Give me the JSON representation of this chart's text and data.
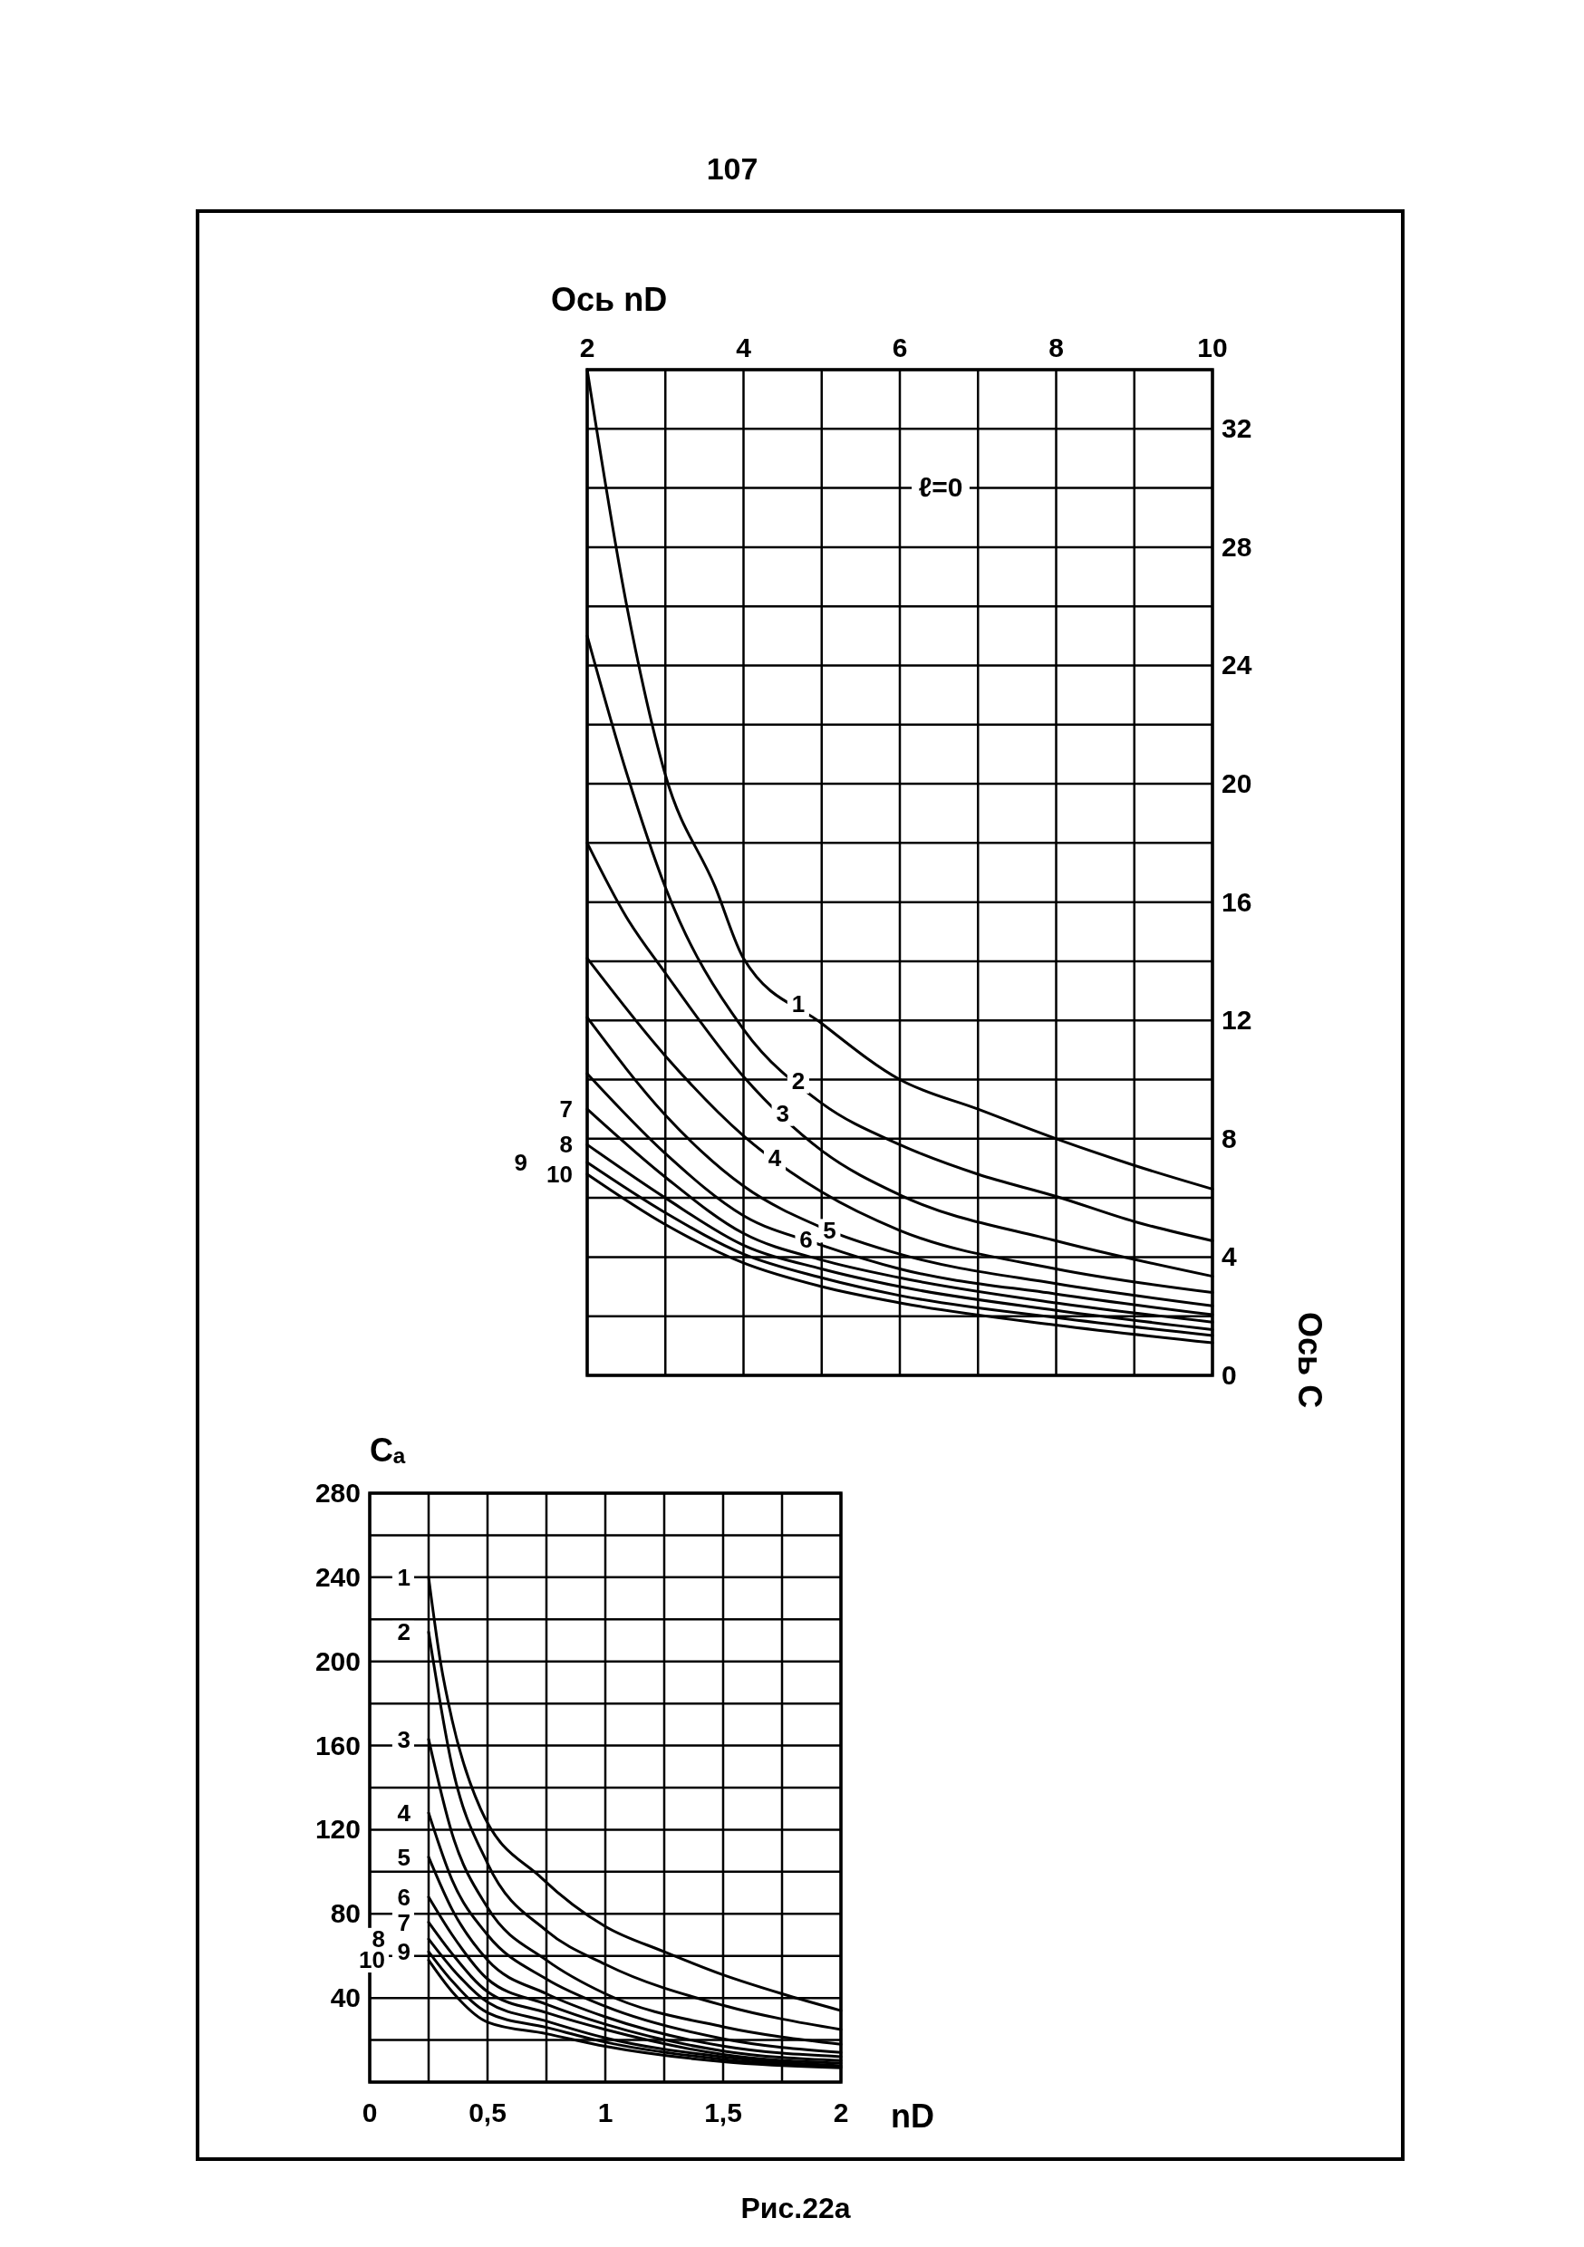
{
  "chart_data": [
    {
      "type": "line",
      "xlabel": "Ось nD",
      "ylabel": "Ось С",
      "xlim": [
        2,
        10
      ],
      "ylim": [
        0,
        34
      ],
      "xticks": [
        2,
        {
          "value": 3,
          "label": null
        },
        4,
        {
          "value": 5,
          "label": null
        },
        6,
        {
          "value": 7,
          "label": null
        },
        8,
        {
          "value": 9,
          "label": null
        },
        10
      ],
      "yticks": [
        0,
        {
          "value": 2,
          "label": null
        },
        4,
        {
          "value": 6,
          "label": null
        },
        8,
        {
          "value": 10,
          "label": null
        },
        12,
        {
          "value": 14,
          "label": null
        },
        16,
        {
          "value": 18,
          "label": null
        },
        20,
        {
          "value": 22,
          "label": null
        },
        24,
        {
          "value": 26,
          "label": null
        },
        28,
        {
          "value": 30,
          "label": null
        },
        32,
        {
          "value": 34,
          "label": null
        }
      ],
      "grid": true,
      "annotations": [
        "107",
        "ℓ=0",
        "Рис.22а"
      ],
      "series": [
        {
          "name": "1",
          "color": "#000000",
          "x": [
            2,
            2.5,
            3,
            3.64,
            4,
            5,
            6,
            7,
            8,
            9,
            10
          ],
          "values": [
            34,
            26.1,
            20.3,
            16.5,
            14.1,
            11.9,
            10,
            9,
            8,
            7.1,
            6.3
          ]
        },
        {
          "name": "2",
          "color": "#000000",
          "x": [
            2,
            2.5,
            3,
            4,
            5,
            6,
            7,
            8,
            9,
            10
          ],
          "values": [
            25,
            20.4,
            16.5,
            11.7,
            9.2,
            7.8,
            6.8,
            6.05,
            5.2,
            4.55
          ]
        },
        {
          "name": "3",
          "color": "#000000",
          "x": [
            2,
            2.5,
            3,
            4,
            5,
            6,
            8,
            10
          ],
          "values": [
            18,
            15.5,
            13.6,
            10.1,
            7.6,
            6.1,
            4.55,
            3.35
          ]
        },
        {
          "name": "4",
          "color": "#000000",
          "x": [
            2,
            3,
            4,
            5,
            6,
            8,
            10
          ],
          "values": [
            14.1,
            10.8,
            8.1,
            6.2,
            4.9,
            3.6,
            2.8
          ]
        },
        {
          "name": "5",
          "color": "#000000",
          "x": [
            2,
            3,
            4,
            5,
            6,
            8,
            10
          ],
          "values": [
            12.1,
            8.8,
            6.4,
            5,
            4.1,
            3.1,
            2.35
          ]
        },
        {
          "name": "6",
          "color": "#000000",
          "x": [
            2,
            3,
            4,
            5,
            6,
            8,
            10
          ],
          "values": [
            10.2,
            7.5,
            5.4,
            4.4,
            3.6,
            2.75,
            2.05
          ]
        },
        {
          "name": "7",
          "color": "#000000",
          "x": [
            2,
            3,
            4,
            5,
            6,
            8,
            10
          ],
          "values": [
            9,
            6.7,
            4.8,
            3.9,
            3.3,
            2.45,
            1.8
          ]
        },
        {
          "name": "8",
          "color": "#000000",
          "x": [
            2,
            3,
            4,
            5,
            6,
            8,
            10
          ],
          "values": [
            7.8,
            6,
            4.4,
            3.6,
            3,
            2.2,
            1.55
          ]
        },
        {
          "name": "9",
          "color": "#000000",
          "x": [
            2,
            3,
            4,
            5,
            6,
            8,
            10
          ],
          "values": [
            7.2,
            5.5,
            4.1,
            3.3,
            2.7,
            1.95,
            1.35
          ]
        },
        {
          "name": "10",
          "color": "#000000",
          "x": [
            2,
            3,
            4,
            5,
            6,
            8,
            10
          ],
          "values": [
            6.8,
            5.1,
            3.8,
            3,
            2.45,
            1.7,
            1.1
          ]
        }
      ]
    },
    {
      "type": "line",
      "xlabel": "nD",
      "ylabel": "Cₐ",
      "xlim": [
        0,
        2
      ],
      "ylim": [
        0,
        280
      ],
      "xticks": [
        0,
        {
          "value": 0.25,
          "label": null
        },
        {
          "value": 0.5,
          "label": "0,5"
        },
        {
          "value": 0.75,
          "label": null
        },
        1,
        {
          "value": 1.25,
          "label": null
        },
        {
          "value": 1.5,
          "label": "1,5"
        },
        {
          "value": 1.75,
          "label": null
        },
        2
      ],
      "yticks": [
        {
          "value": 0,
          "label": null
        },
        {
          "value": 20,
          "label": null
        },
        40,
        {
          "value": 60,
          "label": null
        },
        80,
        {
          "value": 100,
          "label": null
        },
        120,
        {
          "value": 140,
          "label": null
        },
        160,
        {
          "value": 180,
          "label": null
        },
        200,
        {
          "value": 220,
          "label": null
        },
        240,
        {
          "value": 260,
          "label": null
        },
        280
      ],
      "grid": true,
      "series": [
        {
          "name": "1",
          "color": "#000000",
          "x": [
            0.25,
            0.3,
            0.35,
            0.47,
            0.73,
            1,
            1.25,
            1.5,
            1.75,
            2
          ],
          "values": [
            240,
            200,
            172,
            130,
            97,
            74,
            62,
            51,
            42,
            34
          ]
        },
        {
          "name": "2",
          "color": "#000000",
          "x": [
            0.25,
            0.35,
            0.5,
            0.75,
            1,
            1.5,
            2
          ],
          "values": [
            214,
            150,
            104,
            72,
            56,
            36.5,
            25
          ]
        },
        {
          "name": "3",
          "color": "#000000",
          "x": [
            0.25,
            0.35,
            0.5,
            0.75,
            1,
            1.5,
            2
          ],
          "values": [
            163,
            118,
            83,
            58,
            42,
            26.3,
            18
          ]
        },
        {
          "name": "4",
          "color": "#000000",
          "x": [
            0.25,
            0.35,
            0.5,
            0.75,
            1,
            1.5,
            2
          ],
          "values": [
            128,
            96,
            70,
            49,
            36,
            20.6,
            14.1
          ]
        },
        {
          "name": "5",
          "color": "#000000",
          "x": [
            0.25,
            0.35,
            0.5,
            0.75,
            1,
            1.5,
            2
          ],
          "values": [
            107,
            82,
            58,
            42,
            31,
            17.1,
            12.1
          ]
        },
        {
          "name": "6",
          "color": "#000000",
          "x": [
            0.25,
            0.35,
            0.5,
            0.75,
            1,
            1.5,
            2
          ],
          "values": [
            88,
            70,
            49,
            37,
            27.5,
            14.8,
            10.2
          ]
        },
        {
          "name": "7",
          "color": "#000000",
          "x": [
            0.25,
            0.35,
            0.5,
            0.75,
            1,
            1.5,
            2
          ],
          "values": [
            76,
            61,
            43,
            33,
            25,
            13.1,
            9
          ]
        },
        {
          "name": "8",
          "color": "#000000",
          "x": [
            0.25,
            0.35,
            0.5,
            0.75,
            1,
            1.5,
            2
          ],
          "values": [
            68,
            54,
            38,
            29,
            21,
            12,
            7.8
          ]
        },
        {
          "name": "9",
          "color": "#000000",
          "x": [
            0.25,
            0.35,
            0.5,
            0.75,
            1,
            1.5,
            2
          ],
          "values": [
            62,
            48,
            33,
            26,
            19,
            10.8,
            7.2
          ]
        },
        {
          "name": "10",
          "color": "#000000",
          "x": [
            0.25,
            0.35,
            0.5,
            0.75,
            1,
            1.5,
            2
          ],
          "values": [
            58,
            43,
            28.5,
            23,
            17,
            9.7,
            6.8
          ]
        }
      ]
    }
  ]
}
